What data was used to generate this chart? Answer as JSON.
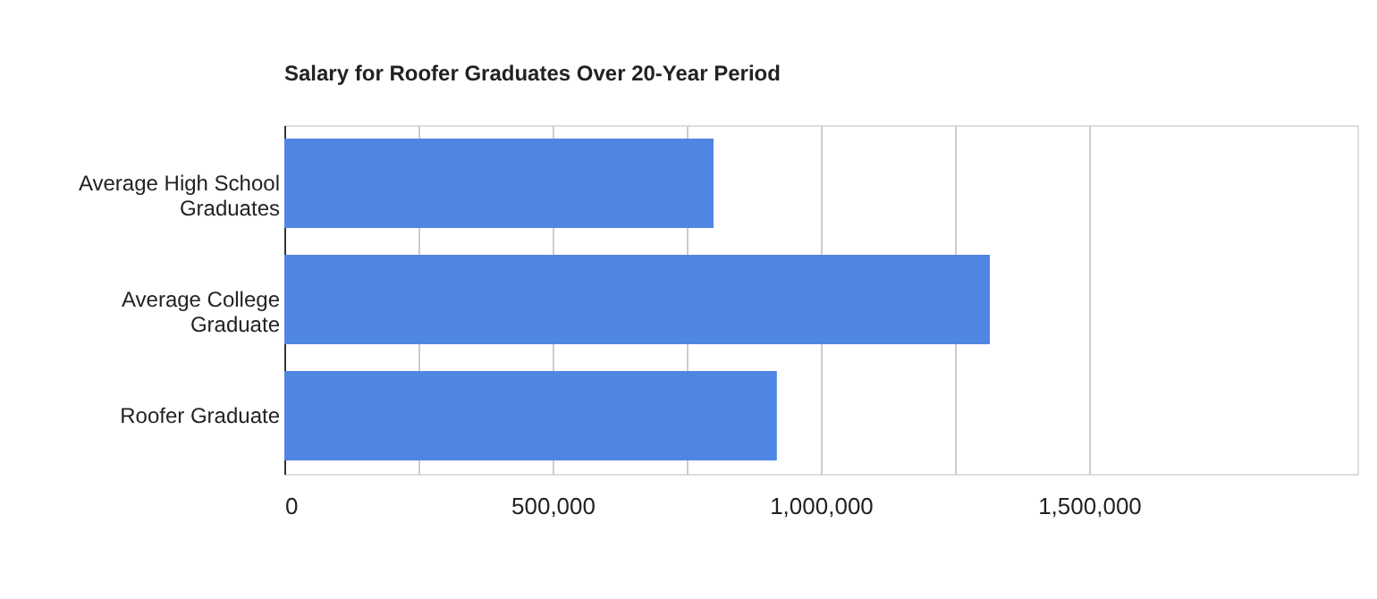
{
  "chart_data": {
    "type": "bar",
    "orientation": "horizontal",
    "title": "Salary for Roofer Graduates Over 20-Year Period",
    "categories": [
      "Average High School Graduates",
      "Average College Graduate",
      "Roofer Graduate"
    ],
    "values": [
      800000,
      1315000,
      918000
    ],
    "color": "#5086e3",
    "xlim": [
      0,
      2000000
    ],
    "xticks": [
      0,
      {
        "value": 250000,
        "label": null
      },
      {
        "value": 500000,
        "label": "500,000"
      },
      {
        "value": 750000,
        "label": null
      },
      {
        "value": 1000000,
        "label": "1,000,000"
      },
      {
        "value": 1250000,
        "label": null
      },
      {
        "value": 1500000,
        "label": "1,500,000"
      }
    ],
    "grid": "x"
  }
}
